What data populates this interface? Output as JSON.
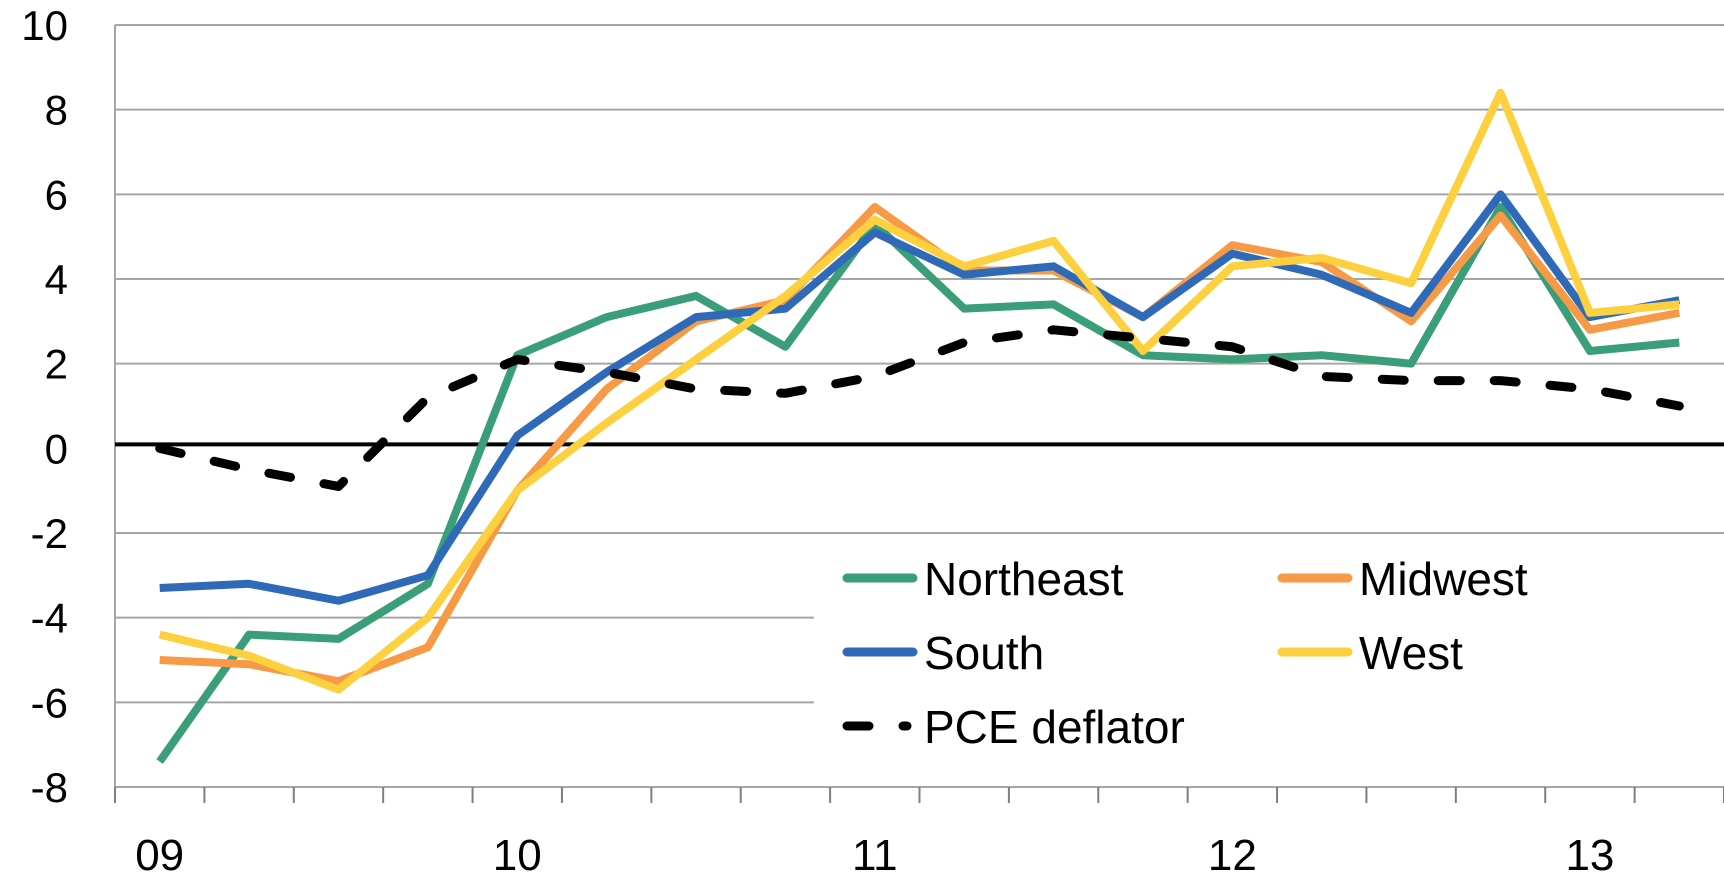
{
  "chart_data": {
    "type": "line",
    "categories": [
      "09",
      null,
      null,
      null,
      "10",
      null,
      null,
      null,
      "11",
      null,
      null,
      null,
      "12",
      null,
      null,
      null,
      "13",
      null
    ],
    "series": [
      {
        "name": "Northeast",
        "color": "#3a9e78",
        "values": [
          -7.4,
          -4.4,
          -4.5,
          -3.2,
          2.2,
          3.1,
          3.6,
          2.4,
          5.3,
          3.3,
          3.4,
          2.2,
          2.1,
          2.2,
          2.0,
          5.7,
          2.3,
          2.5
        ]
      },
      {
        "name": "Midwest",
        "color": "#f79a45",
        "values": [
          -5.0,
          -5.1,
          -5.5,
          -4.7,
          -1.0,
          1.4,
          3.0,
          3.5,
          5.7,
          4.2,
          4.2,
          3.1,
          4.8,
          4.4,
          3.0,
          5.5,
          2.8,
          3.2
        ]
      },
      {
        "name": "South",
        "color": "#2e6ab8",
        "values": [
          -3.3,
          -3.2,
          -3.6,
          -3.0,
          0.3,
          1.8,
          3.1,
          3.3,
          5.1,
          4.1,
          4.3,
          3.1,
          4.6,
          4.1,
          3.2,
          6.0,
          3.1,
          3.5
        ]
      },
      {
        "name": "West",
        "color": "#fdd040",
        "values": [
          -4.4,
          -4.9,
          -5.7,
          -4.0,
          -1.0,
          0.6,
          2.1,
          3.6,
          5.4,
          4.3,
          4.9,
          2.3,
          4.3,
          4.5,
          3.9,
          8.4,
          3.2,
          3.4
        ]
      },
      {
        "name": "PCE deflator",
        "color": "#000000",
        "dashed": true,
        "values": [
          0.0,
          -0.5,
          -0.9,
          1.2,
          2.1,
          1.8,
          1.4,
          1.3,
          1.7,
          2.5,
          2.8,
          2.6,
          2.4,
          1.7,
          1.6,
          1.6,
          1.4,
          1.0
        ]
      }
    ],
    "ylim": [
      -8,
      10
    ],
    "yticks": [
      -8,
      -6,
      -4,
      -2,
      0,
      2,
      4,
      6,
      8,
      10
    ],
    "grid": true,
    "legend": "lower right"
  }
}
